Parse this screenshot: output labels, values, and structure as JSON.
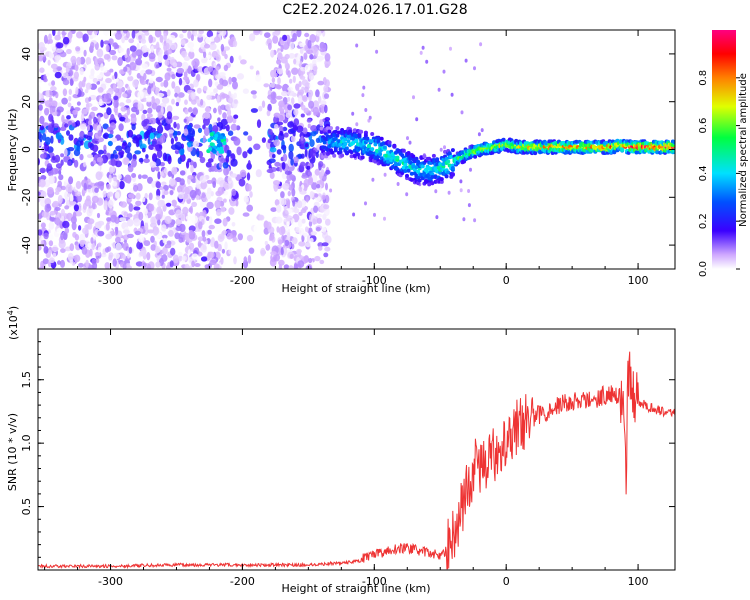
{
  "title": "C2E2.2024.026.17.01.G28",
  "chart_data": [
    {
      "type": "heatmap",
      "xlabel": "Height of straight line (km)",
      "ylabel": "Frequency (Hz)",
      "xlim": [
        -355,
        128
      ],
      "ylim": [
        -50,
        50
      ],
      "xticks": [
        -300,
        -200,
        -100,
        0,
        100
      ],
      "yticks": [
        -40,
        -20,
        0,
        20,
        40
      ],
      "colorbar": {
        "label": "Normalized spectral amplitude",
        "range": [
          0,
          1
        ],
        "ticks": [
          "0.0",
          "0.2",
          "0.4",
          "0.6",
          "0.8"
        ],
        "colors": [
          "#ffffff",
          "#9b59ff",
          "#3a00ff",
          "#0050ff",
          "#00e0ff",
          "#00ff40",
          "#e0ff00",
          "#ff8000",
          "#ff0000",
          "#ff0080"
        ]
      },
      "ridge": {
        "x": [
          -140,
          -130,
          -120,
          -110,
          -100,
          -90,
          -80,
          -70,
          -60,
          -50,
          -40,
          -30,
          -20,
          -10,
          0,
          10,
          20,
          40,
          60,
          80,
          86,
          90,
          100,
          110,
          128
        ],
        "y": [
          3,
          3,
          3,
          2,
          1,
          -2,
          -5,
          -8,
          -9,
          -8,
          -5,
          -2,
          0,
          1,
          2,
          1,
          1,
          1,
          1,
          1,
          2,
          1,
          1,
          1,
          1
        ],
        "amplitude": [
          0.3,
          0.4,
          0.45,
          0.45,
          0.5,
          0.5,
          0.5,
          0.45,
          0.45,
          0.5,
          0.55,
          0.6,
          0.7,
          0.7,
          0.7,
          0.75,
          0.8,
          0.85,
          0.85,
          0.9,
          0.8,
          0.95,
          0.95,
          0.95,
          0.95
        ]
      },
      "noise_band": {
        "x_range": [
          -355,
          -135
        ],
        "y_center": 3,
        "amplitude": 0.3
      },
      "hotspot": {
        "x": -220,
        "y": 3,
        "amplitude": 0.5
      }
    },
    {
      "type": "line",
      "xlabel": "Height of straight line (km)",
      "ylabel": "SNR (10 * v/v)",
      "y_multiplier": "(x10",
      "y_multiplier_exp": "4",
      "y_multiplier_close": ")",
      "xlim": [
        -355,
        128
      ],
      "ylim": [
        0,
        1.9
      ],
      "xticks": [
        -300,
        -200,
        -100,
        0,
        100
      ],
      "yticks": [
        "0.5",
        "1.0",
        "1.5"
      ],
      "series": [
        {
          "color": "#ee3333",
          "x": [
            -355,
            -300,
            -250,
            -210,
            -150,
            -120,
            -105,
            -95,
            -85,
            -75,
            -60,
            -48,
            -42,
            -35,
            -28,
            -22,
            -15,
            -10,
            0,
            10,
            20,
            30,
            40,
            50,
            60,
            70,
            80,
            85,
            88,
            90,
            91,
            92,
            93,
            95,
            100,
            110,
            120,
            128
          ],
          "y": [
            0.03,
            0.03,
            0.04,
            0.04,
            0.04,
            0.06,
            0.08,
            0.12,
            0.15,
            0.16,
            0.12,
            0.1,
            0.22,
            0.45,
            0.7,
            0.85,
            0.8,
            0.9,
            1.05,
            1.15,
            1.2,
            1.25,
            1.3,
            1.33,
            1.33,
            1.36,
            1.4,
            1.38,
            1.3,
            1.0,
            0.6,
            1.5,
            1.6,
            1.42,
            1.32,
            1.28,
            1.25,
            1.25
          ]
        }
      ]
    }
  ]
}
